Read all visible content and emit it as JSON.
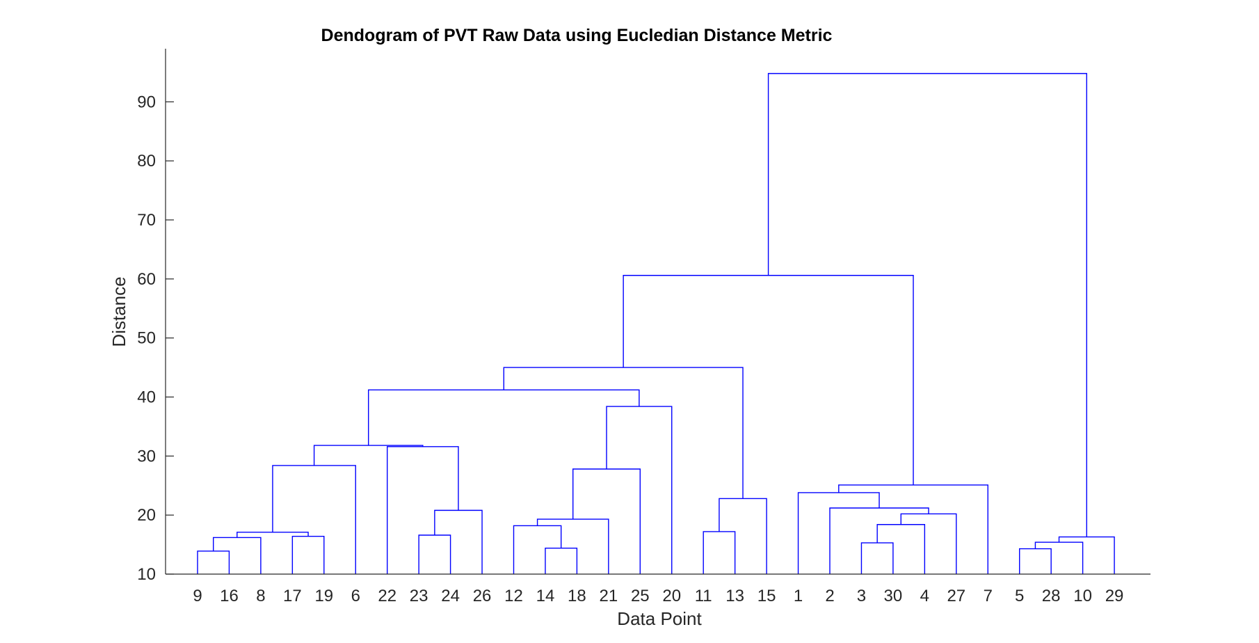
{
  "chart_data": {
    "type": "dendrogram",
    "title": "Dendogram of PVT Raw Data using Eucledian Distance Metric",
    "xlabel": "Data Point",
    "ylabel": "Distance",
    "ylim": [
      10,
      99
    ],
    "yticks": [
      10,
      20,
      30,
      40,
      50,
      60,
      70,
      80,
      90
    ],
    "grid": false,
    "line_color": "#0000ff",
    "leaf_order": [
      "9",
      "16",
      "8",
      "17",
      "19",
      "6",
      "22",
      "23",
      "24",
      "26",
      "12",
      "14",
      "18",
      "21",
      "25",
      "20",
      "11",
      "13",
      "15",
      "1",
      "2",
      "3",
      "30",
      "4",
      "27",
      "7",
      "5",
      "28",
      "10",
      "29"
    ],
    "merges": [
      {
        "left": "9",
        "right": "16",
        "height": 13.9
      },
      {
        "left": "17",
        "right": "19",
        "height": 16.4
      },
      {
        "left": "9,16",
        "right": "8",
        "height": 16.2
      },
      {
        "left": "9,16,8",
        "right": "17,19",
        "height": 17.1
      },
      {
        "left": "9,16,8,17,19",
        "right": "6",
        "height": 28.4
      },
      {
        "left": "23",
        "right": "24",
        "height": 16.6
      },
      {
        "left": "23,24",
        "right": "26",
        "height": 20.8
      },
      {
        "left": "22",
        "right": "23,24,26",
        "height": 31.6
      },
      {
        "left": "9,16,8,17,19,6",
        "right": "22,23,24,26",
        "height": 31.8
      },
      {
        "left": "14",
        "right": "18",
        "height": 14.4
      },
      {
        "left": "12",
        "right": "14,18",
        "height": 18.2
      },
      {
        "left": "12,14,18",
        "right": "21",
        "height": 19.3
      },
      {
        "left": "12,14,18,21",
        "right": "25",
        "height": 27.8
      },
      {
        "left": "12,14,18,21,25",
        "right": "20",
        "height": 38.4
      },
      {
        "left": "9,...,26",
        "right": "12,...,20",
        "height": 41.2
      },
      {
        "left": "11",
        "right": "13",
        "height": 17.2
      },
      {
        "left": "11,13",
        "right": "15",
        "height": 22.8
      },
      {
        "left": "9,...,20",
        "right": "11,13,15",
        "height": 45.0
      },
      {
        "left": "3",
        "right": "30",
        "height": 15.3
      },
      {
        "left": "3,30",
        "right": "4",
        "height": 18.4
      },
      {
        "left": "3,30,4",
        "right": "27",
        "height": 20.2
      },
      {
        "left": "2",
        "right": "3,30,4,27",
        "height": 21.2
      },
      {
        "left": "1",
        "right": "2,3,30,4,27",
        "height": 23.8
      },
      {
        "left": "1,2,3,30,4,27",
        "right": "7",
        "height": 25.1
      },
      {
        "left": "9,...,15",
        "right": "1,...,7",
        "height": 60.6
      },
      {
        "left": "5",
        "right": "28",
        "height": 14.3
      },
      {
        "left": "5,28",
        "right": "10",
        "height": 15.4
      },
      {
        "left": "5,28,10",
        "right": "29",
        "height": 16.3
      },
      {
        "left": "9,...,7",
        "right": "5,28,10,29",
        "height": 94.8
      }
    ]
  }
}
